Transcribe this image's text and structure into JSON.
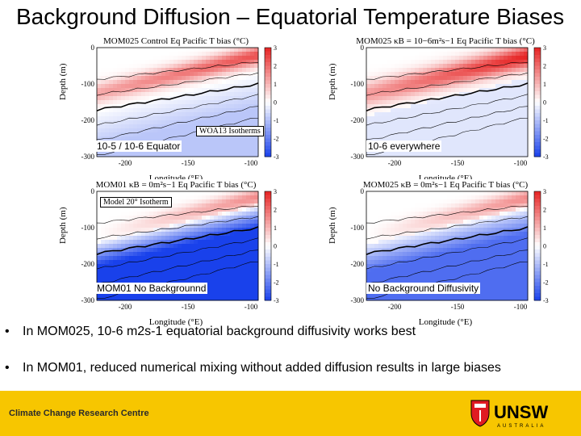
{
  "slide": {
    "title": "Background Diffusion – Equatorial Temperature Biases",
    "bullets": [
      {
        "text": "In MOM025, 10-6 m2s-1 equatorial background diffusivity works best"
      },
      {
        "text": "In MOM01, reduced numerical mixing without added diffusion results in large biases"
      }
    ],
    "footer": {
      "org": "Climate Change Research Centre",
      "logo_text": "UNSW",
      "logo_sub": "AUSTRALIA"
    }
  },
  "panels": [
    {
      "title": "MOM025 Control Eq Pacific T bias (°C)",
      "caption": "10-5 / 10-6 Equator",
      "inset": "WOA13 Isotherms",
      "scheme": "warm-shallow"
    },
    {
      "title": "MOM025 κB = 10−6m²s−1 Eq Pacific T bias (°C)",
      "caption": "10-6 everywhere",
      "inset": "",
      "scheme": "warm-strong"
    },
    {
      "title": "MOM01 κB = 0m²s−1 Eq Pacific T bias (°C)",
      "caption": "MOM01 No Backgrounnd",
      "inset": "Model 20° Isotherm",
      "scheme": "cold-strong"
    },
    {
      "title": "MOM025 κB = 0m²s−1 Eq Pacific T bias (°C)",
      "caption": "No Background Diffusivity",
      "inset": "",
      "scheme": "cold-mid"
    }
  ],
  "axes": {
    "ylabel": "Depth (m)",
    "xlabel": "Longitude (°E)",
    "yticks": [
      "0",
      "-100",
      "-200",
      "-300"
    ],
    "xticks": [
      "-200",
      "-150",
      "-100"
    ],
    "cbar_ticks": [
      "3",
      "2",
      "1",
      "0",
      "-1",
      "-2",
      "-3"
    ]
  },
  "chart_data": {
    "type": "heatmap",
    "x_ticks": [
      -200,
      -150,
      -100
    ],
    "y_ticks": [
      0,
      -100,
      -200,
      -300
    ],
    "color_range": [
      -3,
      3
    ],
    "colorbar_label": "T bias (°C)"
  },
  "colors": {
    "warm": "#e8202a",
    "cold": "#1f3fe0",
    "neutral": "#ffffff",
    "footer": "#f7c600"
  }
}
